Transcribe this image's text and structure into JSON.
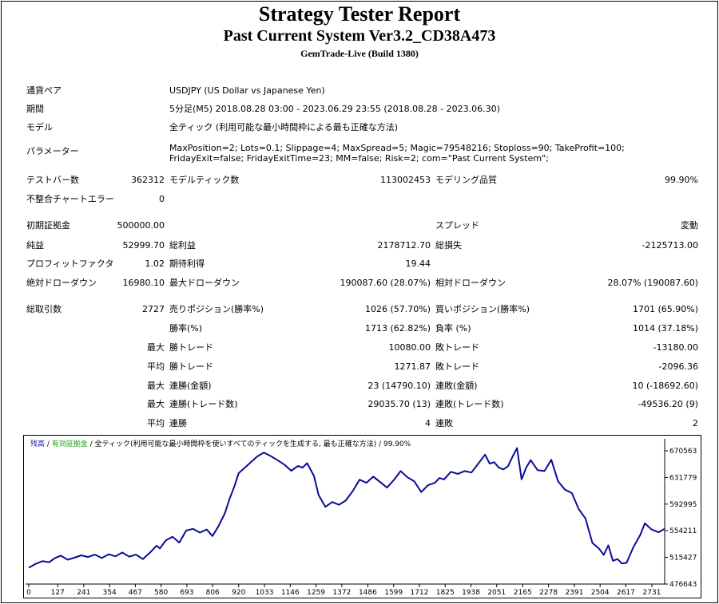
{
  "header": {
    "title": "Strategy Tester Report",
    "subtitle": "Past Current System Ver3.2_CD38A473",
    "build": "GemTrade-Live (Build 1380)"
  },
  "info": {
    "pair_label": "通貨ペア",
    "pair_value": "USDJPY (US Dollar vs Japanese Yen)",
    "period_label": "期間",
    "period_value": "5分足(M5) 2018.08.28 03:00 - 2023.06.29 23:55 (2018.08.28 - 2023.06.30)",
    "model_label": "モデル",
    "model_value": "全ティック (利用可能な最小時間枠による最も正確な方法)",
    "params_label": "パラメーター",
    "params_value": "MaxPosition=2; Lots=0.1; Slippage=4; MaxSpread=5; Magic=79548216; Stoploss=90; TakeProfit=100; FridayExit=false; FridayExitTime=23; MM=false; Risk=2; com=\"Past Current System\";"
  },
  "stats": {
    "bars_label": "テストバー数",
    "bars_value": "362312",
    "ticks_label": "モデルティック数",
    "ticks_value": "113002453",
    "quality_label": "モデリング品質",
    "quality_value": "99.90%",
    "mismatch_label": "不整合チャートエラー",
    "mismatch_value": "0",
    "deposit_label": "初期証拠金",
    "deposit_value": "500000.00",
    "spread_label": "スプレッド",
    "spread_value": "変動",
    "net_label": "純益",
    "net_value": "52999.70",
    "gross_profit_label": "総利益",
    "gross_profit_value": "2178712.70",
    "gross_loss_label": "総損失",
    "gross_loss_value": "-2125713.00",
    "pf_label": "プロフィットファクタ",
    "pf_value": "1.02",
    "exp_label": "期待利得",
    "exp_value": "19.44",
    "abs_dd_label": "絶対ドローダウン",
    "abs_dd_value": "16980.10",
    "max_dd_label": "最大ドローダウン",
    "max_dd_value": "190087.60 (28.07%)",
    "rel_dd_label": "相対ドローダウン",
    "rel_dd_value": "28.07% (190087.60)",
    "trades_label": "総取引数",
    "trades_value": "2727",
    "short_label": "売りポジション(勝率%)",
    "short_value": "1026 (57.70%)",
    "long_label": "買いポジション(勝率%)",
    "long_value": "1701 (65.90%)",
    "win_label": "勝率(%)",
    "win_value": "1713 (62.82%)",
    "loss_label": "負率 (%)",
    "loss_value": "1014 (37.18%)",
    "max_word": "最大",
    "avg_word": "平均",
    "max_win_label": "勝トレード",
    "max_win_value": "10080.00",
    "max_loss_label": "敗トレード",
    "max_loss_value": "-13180.00",
    "avg_win_label": "勝トレード",
    "avg_win_value": "1271.87",
    "avg_loss_label": "敗トレード",
    "avg_loss_value": "-2096.36",
    "cons_win_amt_label": "連勝(金額)",
    "cons_win_amt_value": "23 (14790.10)",
    "cons_loss_amt_label": "連敗(金額)",
    "cons_loss_amt_value": "10 (-18692.60)",
    "cons_win_cnt_label": "連勝(トレード数)",
    "cons_win_cnt_value": "29035.70 (13)",
    "cons_loss_cnt_label": "連敗(トレード数)",
    "cons_loss_cnt_value": "-49536.20 (9)",
    "avg_cons_win_label": "連勝",
    "avg_cons_win_value": "4",
    "avg_cons_loss_label": "連敗",
    "avg_cons_loss_value": "2"
  },
  "chart_data": {
    "type": "line",
    "legend": {
      "balance": "残高",
      "sep1": " / ",
      "equity": "有効証拠金",
      "sep2": " / ",
      "model": "全ティック(利用可能な最小時間枠を使いすべてのティックを生成する, 最も正確な方法)",
      "sep3": " / ",
      "quality": "99.90%"
    },
    "x_ticks": [
      "0",
      "127",
      "241",
      "354",
      "467",
      "580",
      "693",
      "806",
      "920",
      "1033",
      "1146",
      "1259",
      "1372",
      "1486",
      "1599",
      "1712",
      "1825",
      "1938",
      "2051",
      "2165",
      "2278",
      "2391",
      "2504",
      "2617",
      "2731"
    ],
    "y_ticks": [
      "670563",
      "631779",
      "592995",
      "554211",
      "515427",
      "476643"
    ],
    "xlim": [
      0,
      2787
    ],
    "ylim": [
      476643,
      681000
    ],
    "line_color": "#0b0b9a",
    "series": [
      {
        "x": [
          0,
          30,
          60,
          90,
          115,
          140,
          170,
          200,
          230,
          260,
          290,
          320,
          350,
          380,
          410,
          440,
          470,
          500,
          530,
          560,
          575,
          600,
          630,
          660,
          690,
          720,
          750,
          780,
          805,
          830,
          860,
          880,
          900,
          920,
          960,
          1000,
          1030,
          1060,
          1090,
          1120,
          1150,
          1180,
          1200,
          1220,
          1250,
          1270,
          1300,
          1330,
          1360,
          1390,
          1420,
          1450,
          1480,
          1510,
          1540,
          1570,
          1600,
          1630,
          1660,
          1690,
          1720,
          1750,
          1780,
          1800,
          1820,
          1850,
          1880,
          1910,
          1940,
          1970,
          2000,
          2020,
          2040,
          2060,
          2080,
          2100,
          2120,
          2140,
          2160,
          2180,
          2200,
          2230,
          2260,
          2290,
          2320,
          2350,
          2380,
          2410,
          2440,
          2470,
          2500,
          2520,
          2540,
          2560,
          2580,
          2600,
          2620,
          2650,
          2680,
          2700,
          2730,
          2760,
          2787
        ],
        "y": [
          500500,
          506000,
          510000,
          508500,
          514500,
          518000,
          512000,
          515000,
          518500,
          516000,
          519500,
          514500,
          520000,
          517000,
          522500,
          516500,
          519500,
          513000,
          522000,
          532500,
          528500,
          540000,
          545500,
          537000,
          554500,
          557000,
          551500,
          556000,
          546500,
          560000,
          580000,
          600500,
          618000,
          638000,
          650000,
          662000,
          668000,
          663000,
          657000,
          650500,
          641500,
          648500,
          646000,
          652500,
          634000,
          606500,
          589000,
          596000,
          592000,
          598500,
          612000,
          628500,
          624000,
          633000,
          625000,
          617000,
          628000,
          641000,
          632000,
          626000,
          610500,
          620500,
          624000,
          631000,
          629000,
          640000,
          637000,
          641000,
          639000,
          652000,
          665000,
          652000,
          654000,
          646000,
          643500,
          648000,
          662000,
          674500,
          629000,
          646000,
          657000,
          642500,
          641000,
          657500,
          626000,
          614000,
          609000,
          586000,
          572000,
          536500,
          528000,
          519000,
          533000,
          510500,
          513000,
          506500,
          507500,
          530500,
          548000,
          565000,
          556000,
          552000,
          557000
        ]
      }
    ]
  }
}
